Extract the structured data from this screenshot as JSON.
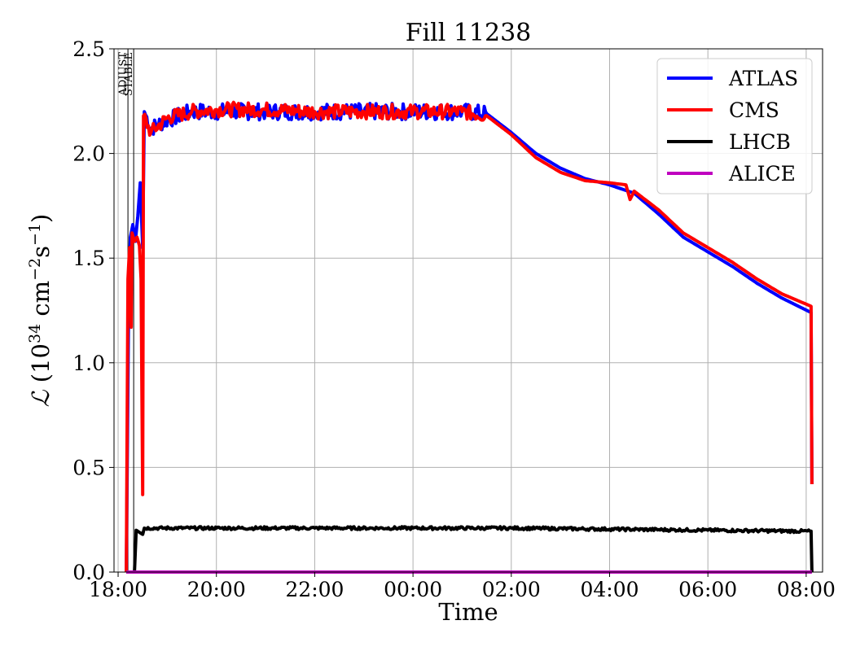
{
  "chart_data": {
    "type": "line",
    "title": "Fill 11238",
    "xlabel": "Time",
    "ylabel": "ℒ (10³⁴ cm⁻²s⁻¹)",
    "ylabel_parts": {
      "symbol": "ℒ",
      "open": " (10",
      "exp1": "34",
      "mid": " cm",
      "exp2": "−2",
      "s": "s",
      "exp3": "−1",
      "close": ")"
    },
    "xlim": [
      "2024-10-02 17:55",
      "2024-10-03 08:20"
    ],
    "ylim": [
      0,
      2.5
    ],
    "x_ticks": [
      {
        "time": "2024-10-02 18:00",
        "label": "18:00"
      },
      {
        "time": "2024-10-02 20:00",
        "label": "20:00"
      },
      {
        "time": "2024-10-02 22:00",
        "label": "22:00"
      },
      {
        "time": "2024-10-03 00:00",
        "label": "00:00"
      },
      {
        "time": "2024-10-03 02:00",
        "label": "02:00"
      },
      {
        "time": "2024-10-03 04:00",
        "label": "04:00"
      },
      {
        "time": "2024-10-03 06:00",
        "label": "06:00"
      },
      {
        "time": "2024-10-03 08:00",
        "label": "08:00"
      }
    ],
    "y_ticks": [
      {
        "value": 0.0,
        "label": "0.0"
      },
      {
        "value": 0.5,
        "label": "0.5"
      },
      {
        "value": 1.0,
        "label": "1.0"
      },
      {
        "value": 1.5,
        "label": "1.5"
      },
      {
        "value": 2.0,
        "label": "2.0"
      },
      {
        "value": 2.5,
        "label": "2.5"
      }
    ],
    "grid": true,
    "legend_position": "top-right",
    "markers": [
      {
        "label": "ADJUST",
        "time": "2024-10-02 18:12"
      },
      {
        "label": "STABLE",
        "time": "2024-10-02 18:19"
      }
    ],
    "series": [
      {
        "name": "ATLAS",
        "color": "#0000ff",
        "points": [
          [
            "2024-10-02 18:10",
            0.0
          ],
          [
            "2024-10-02 18:13",
            1.35
          ],
          [
            "2024-10-02 18:15",
            1.6
          ],
          [
            "2024-10-02 18:18",
            1.66
          ],
          [
            "2024-10-02 18:21",
            1.58
          ],
          [
            "2024-10-02 18:24",
            1.7
          ],
          [
            "2024-10-02 18:27",
            1.86
          ],
          [
            "2024-10-02 18:30",
            1.55
          ],
          [
            "2024-10-02 18:32",
            2.2
          ],
          [
            "2024-10-02 18:40",
            2.12
          ],
          [
            "2024-10-02 19:00",
            2.16
          ],
          [
            "2024-10-02 19:30",
            2.2
          ],
          [
            "2024-10-02 20:00",
            2.2
          ],
          [
            "2024-10-02 21:00",
            2.2
          ],
          [
            "2024-10-02 22:00",
            2.2
          ],
          [
            "2024-10-02 23:00",
            2.2
          ],
          [
            "2024-10-03 00:00",
            2.2
          ],
          [
            "2024-10-03 01:00",
            2.2
          ],
          [
            "2024-10-03 01:30",
            2.19
          ],
          [
            "2024-10-03 02:00",
            2.1
          ],
          [
            "2024-10-03 02:30",
            2.0
          ],
          [
            "2024-10-03 03:00",
            1.93
          ],
          [
            "2024-10-03 03:30",
            1.88
          ],
          [
            "2024-10-03 04:00",
            1.85
          ],
          [
            "2024-10-03 04:30",
            1.81
          ],
          [
            "2024-10-03 05:00",
            1.71
          ],
          [
            "2024-10-03 05:30",
            1.6
          ],
          [
            "2024-10-03 06:00",
            1.53
          ],
          [
            "2024-10-03 06:30",
            1.46
          ],
          [
            "2024-10-03 07:00",
            1.38
          ],
          [
            "2024-10-03 07:30",
            1.31
          ],
          [
            "2024-10-03 08:06",
            1.24
          ],
          [
            "2024-10-03 08:07",
            0.42
          ]
        ],
        "noise": [
          [
            "2024-10-02 18:32",
            "2024-10-03 01:30",
            0.04
          ]
        ]
      },
      {
        "name": "CMS",
        "color": "#ff0000",
        "points": [
          [
            "2024-10-02 18:10",
            0.0
          ],
          [
            "2024-10-02 18:12",
            1.4
          ],
          [
            "2024-10-02 18:14",
            1.55
          ],
          [
            "2024-10-02 18:16",
            1.17
          ],
          [
            "2024-10-02 18:17",
            1.62
          ],
          [
            "2024-10-02 18:20",
            1.58
          ],
          [
            "2024-10-02 18:23",
            1.6
          ],
          [
            "2024-10-02 18:26",
            1.56
          ],
          [
            "2024-10-02 18:28",
            1.4
          ],
          [
            "2024-10-02 18:30",
            0.37
          ],
          [
            "2024-10-02 18:31",
            2.18
          ],
          [
            "2024-10-02 18:40",
            2.1
          ],
          [
            "2024-10-02 19:00",
            2.17
          ],
          [
            "2024-10-02 19:30",
            2.2
          ],
          [
            "2024-10-02 20:00",
            2.21
          ],
          [
            "2024-10-02 21:00",
            2.21
          ],
          [
            "2024-10-02 22:00",
            2.2
          ],
          [
            "2024-10-02 23:00",
            2.2
          ],
          [
            "2024-10-03 00:00",
            2.2
          ],
          [
            "2024-10-03 01:00",
            2.2
          ],
          [
            "2024-10-03 01:30",
            2.18
          ],
          [
            "2024-10-03 02:00",
            2.09
          ],
          [
            "2024-10-03 02:30",
            1.98
          ],
          [
            "2024-10-03 03:00",
            1.91
          ],
          [
            "2024-10-03 03:30",
            1.87
          ],
          [
            "2024-10-03 04:00",
            1.86
          ],
          [
            "2024-10-03 04:20",
            1.85
          ],
          [
            "2024-10-03 04:25",
            1.78
          ],
          [
            "2024-10-03 04:30",
            1.82
          ],
          [
            "2024-10-03 05:00",
            1.73
          ],
          [
            "2024-10-03 05:30",
            1.62
          ],
          [
            "2024-10-03 06:00",
            1.55
          ],
          [
            "2024-10-03 06:30",
            1.48
          ],
          [
            "2024-10-03 07:00",
            1.4
          ],
          [
            "2024-10-03 07:30",
            1.33
          ],
          [
            "2024-10-03 08:06",
            1.27
          ],
          [
            "2024-10-03 08:07",
            0.42
          ]
        ],
        "noise": [
          [
            "2024-10-02 18:31",
            "2024-10-03 01:30",
            0.035
          ]
        ]
      },
      {
        "name": "LHCB",
        "color": "#000000",
        "points": [
          [
            "2024-10-02 18:10",
            0.0
          ],
          [
            "2024-10-02 18:20",
            0.0
          ],
          [
            "2024-10-02 18:22",
            0.2
          ],
          [
            "2024-10-02 18:30",
            0.18
          ],
          [
            "2024-10-02 18:32",
            0.21
          ],
          [
            "2024-10-02 20:00",
            0.21
          ],
          [
            "2024-10-02 22:00",
            0.21
          ],
          [
            "2024-10-03 00:00",
            0.21
          ],
          [
            "2024-10-03 02:00",
            0.21
          ],
          [
            "2024-10-03 04:00",
            0.205
          ],
          [
            "2024-10-03 06:00",
            0.2
          ],
          [
            "2024-10-03 08:06",
            0.195
          ],
          [
            "2024-10-03 08:07",
            0.0
          ]
        ],
        "noise": [
          [
            "2024-10-02 18:32",
            "2024-10-03 08:05",
            0.007
          ]
        ]
      },
      {
        "name": "ALICE",
        "color": "#bf00bf",
        "points": [
          [
            "2024-10-02 18:10",
            0.0
          ],
          [
            "2024-10-03 08:07",
            0.0
          ]
        ]
      }
    ]
  }
}
